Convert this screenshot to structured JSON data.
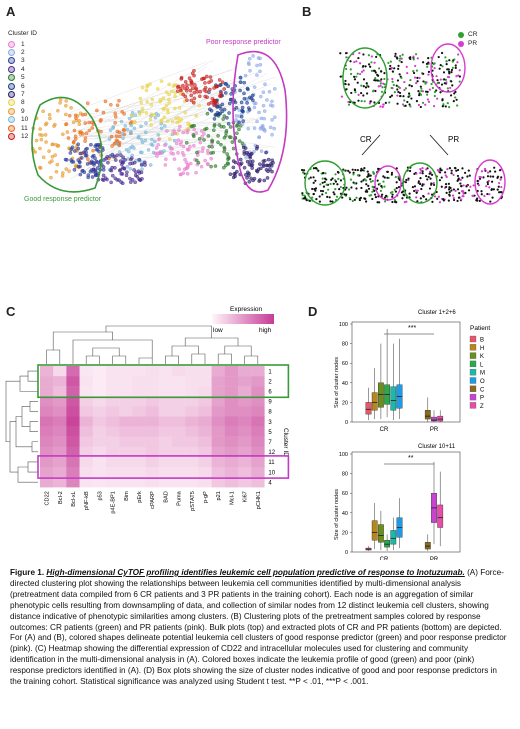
{
  "panels": {
    "A": {
      "label": "A",
      "legend_title": "Cluster ID",
      "clusters": [
        {
          "id": "1",
          "color": "#e77fd1"
        },
        {
          "id": "2",
          "color": "#8fa8e8"
        },
        {
          "id": "3",
          "color": "#2c3e9c"
        },
        {
          "id": "4",
          "color": "#4a2c8f"
        },
        {
          "id": "5",
          "color": "#2d7a2d"
        },
        {
          "id": "6",
          "color": "#1b3f8c"
        },
        {
          "id": "7",
          "color": "#2b1c6b"
        },
        {
          "id": "8",
          "color": "#e8d24a"
        },
        {
          "id": "9",
          "color": "#e89a2c"
        },
        {
          "id": "10",
          "color": "#7ab8d8"
        },
        {
          "id": "11",
          "color": "#e86a1c"
        },
        {
          "id": "12",
          "color": "#c8201c"
        }
      ],
      "poor_label": "Poor response predictor",
      "good_label": "Good response predictor"
    },
    "B": {
      "label": "B",
      "legend": [
        {
          "name": "CR",
          "color": "#2fa02f"
        },
        {
          "name": "PR",
          "color": "#d63ccf"
        }
      ],
      "cr_label": "CR",
      "pr_label": "PR"
    },
    "C": {
      "label": "C",
      "scale_title": "Expression",
      "scale_low": "low",
      "scale_high": "high",
      "row_axis_title": "Cluster ID",
      "rows": [
        "1",
        "2",
        "6",
        "9",
        "8",
        "3",
        "5",
        "7",
        "12",
        "11",
        "10",
        "4"
      ],
      "cols": [
        "CD22",
        "Bcl-2",
        "Bcl-xL",
        "pNF-kB",
        "p53",
        "p4E-BP1",
        "Bim",
        "pErk",
        "cPARP",
        "BAD",
        "Puma",
        "pSTAT5",
        "p-gP",
        "p21",
        "Mcl-1",
        "Ki67",
        "pCHK1"
      ],
      "matrix": [
        [
          0.35,
          0.15,
          0.75,
          0.08,
          0.06,
          0.1,
          0.1,
          0.1,
          0.12,
          0.1,
          0.14,
          0.12,
          0.12,
          0.4,
          0.5,
          0.4,
          0.4
        ],
        [
          0.4,
          0.35,
          0.85,
          0.1,
          0.06,
          0.1,
          0.1,
          0.12,
          0.12,
          0.1,
          0.1,
          0.12,
          0.12,
          0.45,
          0.5,
          0.45,
          0.5
        ],
        [
          0.4,
          0.3,
          0.8,
          0.08,
          0.06,
          0.1,
          0.1,
          0.12,
          0.12,
          0.1,
          0.1,
          0.12,
          0.14,
          0.45,
          0.5,
          0.4,
          0.55
        ],
        [
          0.55,
          0.5,
          0.85,
          0.2,
          0.15,
          0.2,
          0.2,
          0.2,
          0.25,
          0.2,
          0.2,
          0.2,
          0.25,
          0.45,
          0.55,
          0.5,
          0.55
        ],
        [
          0.6,
          0.55,
          0.9,
          0.25,
          0.2,
          0.25,
          0.2,
          0.25,
          0.3,
          0.2,
          0.2,
          0.25,
          0.3,
          0.5,
          0.55,
          0.55,
          0.6
        ],
        [
          0.7,
          0.65,
          0.95,
          0.35,
          0.25,
          0.3,
          0.35,
          0.35,
          0.35,
          0.3,
          0.3,
          0.35,
          0.4,
          0.55,
          0.65,
          0.6,
          0.7
        ],
        [
          0.65,
          0.6,
          0.9,
          0.3,
          0.2,
          0.25,
          0.3,
          0.3,
          0.3,
          0.25,
          0.25,
          0.3,
          0.35,
          0.5,
          0.6,
          0.55,
          0.65
        ],
        [
          0.6,
          0.55,
          0.85,
          0.25,
          0.2,
          0.2,
          0.25,
          0.25,
          0.25,
          0.2,
          0.25,
          0.25,
          0.3,
          0.5,
          0.55,
          0.5,
          0.6
        ],
        [
          0.55,
          0.5,
          0.8,
          0.2,
          0.15,
          0.2,
          0.2,
          0.2,
          0.25,
          0.2,
          0.2,
          0.2,
          0.25,
          0.45,
          0.5,
          0.45,
          0.55
        ],
        [
          0.5,
          0.45,
          0.7,
          0.15,
          0.1,
          0.15,
          0.15,
          0.15,
          0.2,
          0.15,
          0.15,
          0.15,
          0.2,
          0.35,
          0.4,
          0.35,
          0.45
        ],
        [
          0.45,
          0.4,
          0.65,
          0.12,
          0.1,
          0.12,
          0.12,
          0.12,
          0.15,
          0.12,
          0.12,
          0.12,
          0.15,
          0.3,
          0.35,
          0.3,
          0.4
        ],
        [
          0.4,
          0.35,
          0.6,
          0.1,
          0.08,
          0.1,
          0.1,
          0.1,
          0.12,
          0.1,
          0.1,
          0.1,
          0.12,
          0.25,
          0.3,
          0.25,
          0.3
        ]
      ]
    },
    "D": {
      "label": "D",
      "legend_title": "Patient",
      "patients": [
        {
          "name": "B",
          "color": "#e8566b"
        },
        {
          "name": "H",
          "color": "#b8861c"
        },
        {
          "name": "K",
          "color": "#6a8f1c"
        },
        {
          "name": "L",
          "color": "#2ba84a"
        },
        {
          "name": "M",
          "color": "#1cb8a8"
        },
        {
          "name": "O",
          "color": "#1c9ce8"
        },
        {
          "name": "C",
          "color": "#8a6a1c"
        },
        {
          "name": "P",
          "color": "#c844d0"
        },
        {
          "name": "Z",
          "color": "#e84ca8"
        }
      ],
      "top_chart": {
        "title": "Cluster 1+2+6",
        "ylabel": "Size of cluster nodes",
        "yticks": [
          "0",
          "20",
          "40",
          "60",
          "80",
          "100"
        ],
        "groups": [
          "CR",
          "PR"
        ],
        "sig": "***"
      },
      "bottom_chart": {
        "title": "Cluster 10+11",
        "ylabel": "Size of cluster nodes",
        "yticks": [
          "0",
          "20",
          "40",
          "60",
          "80",
          "100"
        ],
        "groups": [
          "CR",
          "PR"
        ],
        "sig": "**"
      }
    }
  },
  "chart_data": [
    {
      "type": "box",
      "title": "Cluster 1+2+6",
      "ylabel": "Size of cluster nodes",
      "ylim": [
        0,
        100
      ],
      "series": [
        {
          "name": "B",
          "group": "CR",
          "q1": 8,
          "median": 13,
          "q3": 20,
          "min": 2,
          "max": 35
        },
        {
          "name": "H",
          "group": "CR",
          "q1": 12,
          "median": 20,
          "q3": 30,
          "min": 3,
          "max": 55
        },
        {
          "name": "K",
          "group": "CR",
          "q1": 15,
          "median": 28,
          "q3": 40,
          "min": 3,
          "max": 80
        },
        {
          "name": "L",
          "group": "CR",
          "q1": 18,
          "median": 28,
          "q3": 38,
          "min": 5,
          "max": 95
        },
        {
          "name": "M",
          "group": "CR",
          "q1": 12,
          "median": 22,
          "q3": 36,
          "min": 2,
          "max": 80
        },
        {
          "name": "O",
          "group": "CR",
          "q1": 14,
          "median": 26,
          "q3": 38,
          "min": 3,
          "max": 85
        },
        {
          "name": "C",
          "group": "PR",
          "q1": 3,
          "median": 6,
          "q3": 12,
          "min": 0,
          "max": 25
        },
        {
          "name": "P",
          "group": "PR",
          "q1": 1,
          "median": 2,
          "q3": 5,
          "min": 0,
          "max": 12
        },
        {
          "name": "Z",
          "group": "PR",
          "q1": 1,
          "median": 3,
          "q3": 6,
          "min": 0,
          "max": 12
        }
      ]
    },
    {
      "type": "box",
      "title": "Cluster 10+11",
      "ylabel": "Size of cluster nodes",
      "ylim": [
        0,
        100
      ],
      "series": [
        {
          "name": "B",
          "group": "CR",
          "q1": 2,
          "median": 3,
          "q3": 4,
          "min": 1,
          "max": 6
        },
        {
          "name": "H",
          "group": "CR",
          "q1": 12,
          "median": 20,
          "q3": 32,
          "min": 3,
          "max": 50
        },
        {
          "name": "K",
          "group": "CR",
          "q1": 10,
          "median": 17,
          "q3": 28,
          "min": 2,
          "max": 42
        },
        {
          "name": "L",
          "group": "CR",
          "q1": 5,
          "median": 8,
          "q3": 12,
          "min": 1,
          "max": 18
        },
        {
          "name": "M",
          "group": "CR",
          "q1": 8,
          "median": 14,
          "q3": 22,
          "min": 2,
          "max": 35
        },
        {
          "name": "O",
          "group": "CR",
          "q1": 15,
          "median": 25,
          "q3": 35,
          "min": 4,
          "max": 55
        },
        {
          "name": "C",
          "group": "PR",
          "q1": 3,
          "median": 6,
          "q3": 10,
          "min": 1,
          "max": 18
        },
        {
          "name": "P",
          "group": "PR",
          "q1": 30,
          "median": 45,
          "q3": 60,
          "min": 8,
          "max": 92
        },
        {
          "name": "Z",
          "group": "PR",
          "q1": 25,
          "median": 35,
          "q3": 48,
          "min": 6,
          "max": 82
        }
      ]
    }
  ],
  "caption": {
    "fig_label": "Figure 1.",
    "title": "High-dimensional CyTOF profiling identifies leukemic cell population predictive of response to Inotuzumab.",
    "body": "(A) Force-directed clustering plot showing the relationships between leukemia cell communities identified by multi-dimensional analysis (pretreatment data compiled from 6 CR patients and 3 PR patients in the training cohort). Each node is an aggregation of similar phenotypic cells resulting from downsampling of data, and collection of similar nodes from 12 distinct leukemia cell clusters, showing distance indicative of phenotypic similarities among clusters. (B) Clustering plots of the pretreatment samples colored by response outcomes: CR patients (green) and PR patients (pink). Bulk plots (top) and extracted plots of CR and PR patients (bottom) are depicted. For (A) and (B), colored shapes delineate potential leukemia cell clusters of good response predictor (green) and poor response predictor (pink). (C) Heatmap showing the differential expression of CD22 and intracellular molecules used for clustering and community identification in the multi-dimensional analysis in (A). Colored boxes indicate the leukemia profile of good (green) and poor (pink) response predictors identified in (A). (D) Box plots showing the size of cluster nodes indicative of good and poor response predictors in the training cohort. Statistical significance was analyzed using Student t test. **P < .01, ***P < .001."
  }
}
